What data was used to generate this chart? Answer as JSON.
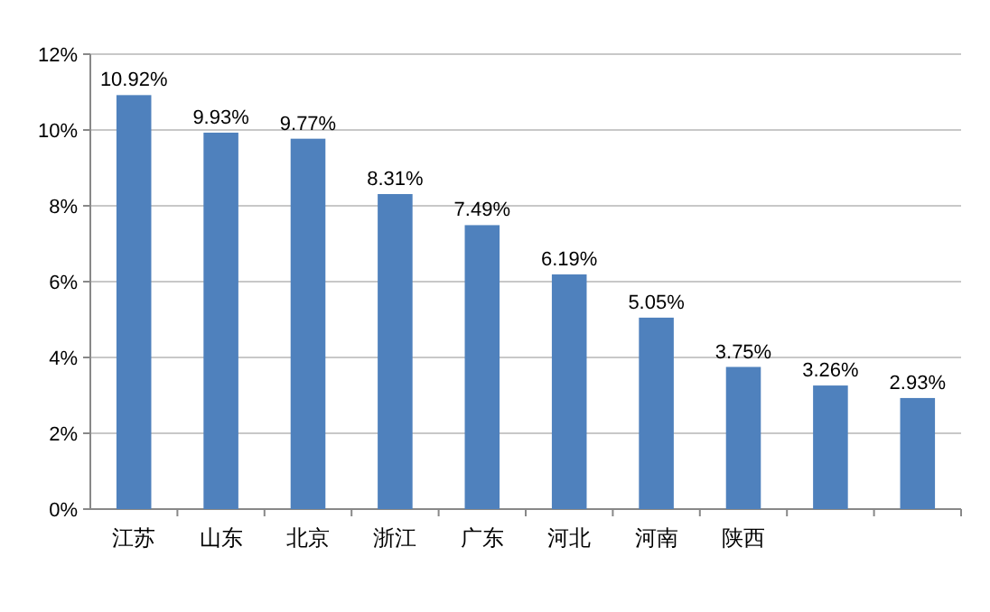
{
  "chart_data": {
    "type": "bar",
    "categories": [
      "江苏",
      "山东",
      "北京",
      "浙江",
      "广东",
      "河北",
      "河南",
      "陕西",
      null,
      null
    ],
    "values": [
      10.92,
      9.93,
      9.77,
      8.31,
      7.49,
      6.19,
      5.05,
      3.75,
      3.26,
      2.93
    ],
    "value_labels": [
      "10.92%",
      "9.93%",
      "9.77%",
      "8.31%",
      "7.49%",
      "6.19%",
      "5.05%",
      "3.75%",
      "3.26%",
      "2.93%"
    ],
    "color": "#4f81bd",
    "ylim": [
      0,
      12
    ],
    "yticks": [
      {
        "value": 0,
        "label": "0%"
      },
      {
        "value": 2,
        "label": "2%"
      },
      {
        "value": 4,
        "label": "4%"
      },
      {
        "value": 6,
        "label": "6%"
      },
      {
        "value": 8,
        "label": "8%"
      },
      {
        "value": 10,
        "label": "10%"
      },
      {
        "value": 12,
        "label": "12%"
      }
    ],
    "grid": "y"
  }
}
